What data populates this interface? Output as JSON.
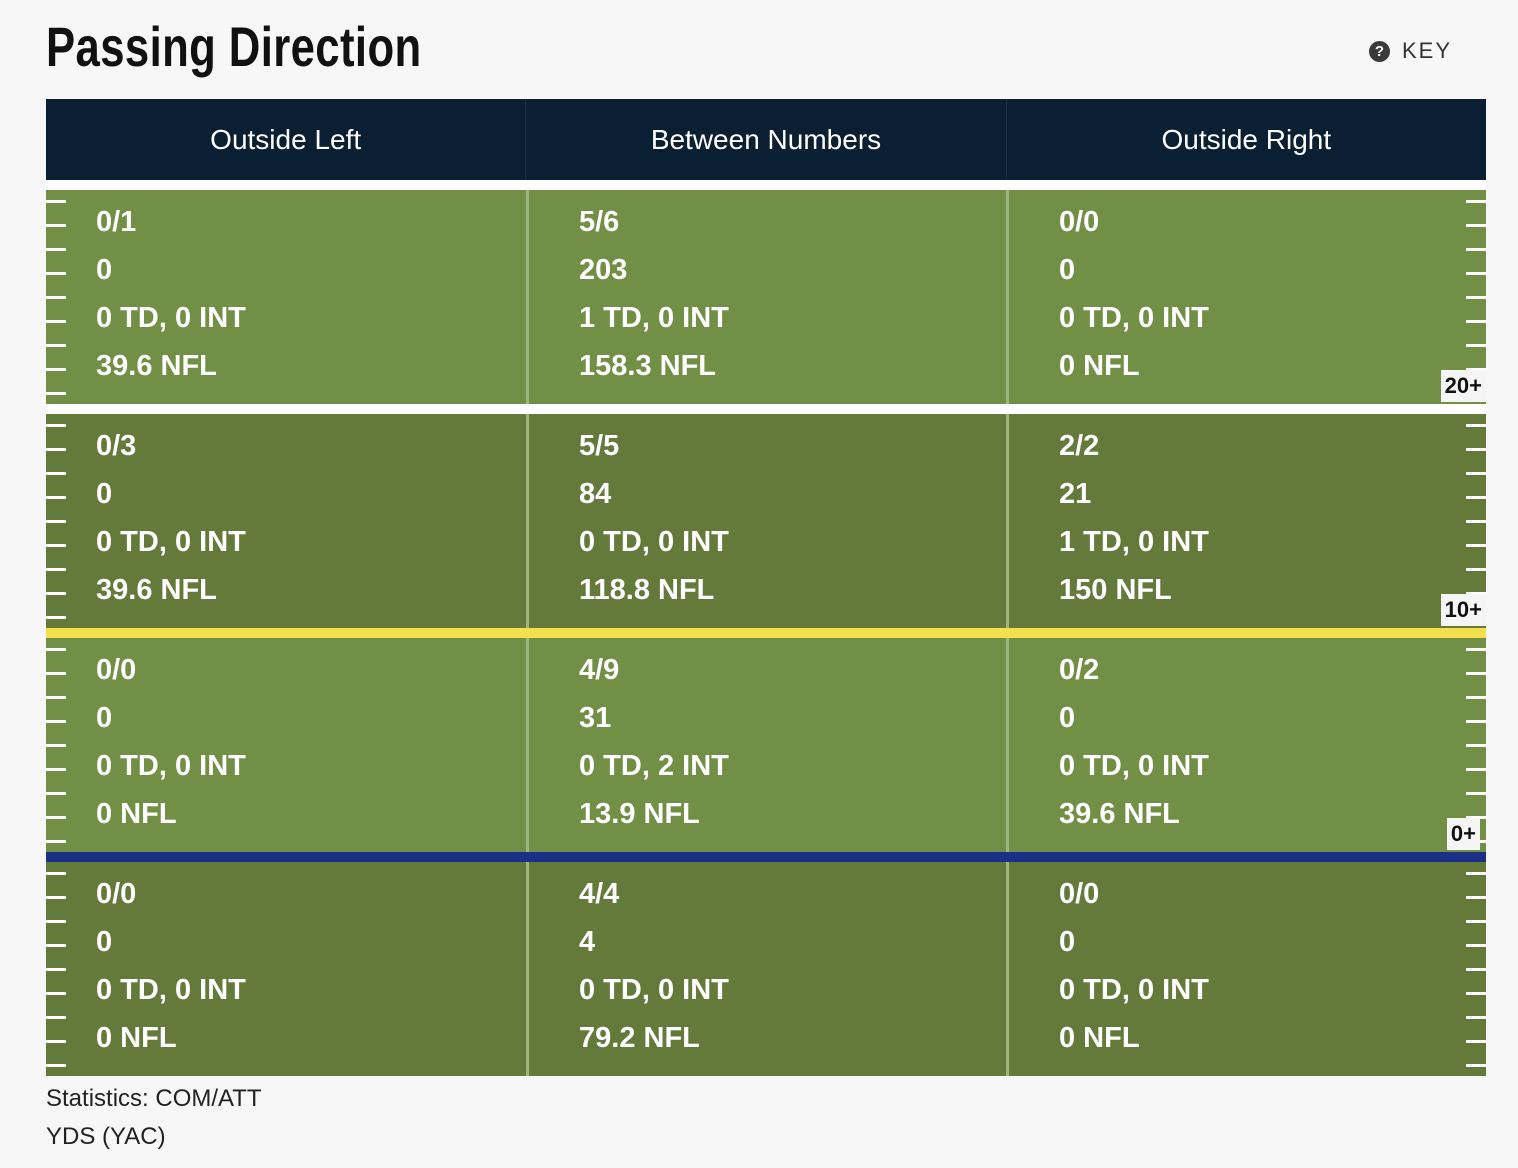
{
  "title": "Passing Direction",
  "key": {
    "icon": "help-circle-icon",
    "label": "KEY"
  },
  "columns": [
    "Outside Left",
    "Between Numbers",
    "Outside Right"
  ],
  "zones": [
    {
      "yard_label": "20+",
      "cells": [
        [
          "0/1",
          "0",
          "0 TD, 0 INT",
          "39.6 NFL"
        ],
        [
          "5/6",
          "203",
          "1 TD, 0 INT",
          "158.3 NFL"
        ],
        [
          "0/0",
          "0",
          "0 TD, 0 INT",
          "0 NFL"
        ]
      ]
    },
    {
      "yard_label": "10+",
      "cells": [
        [
          "0/3",
          "0",
          "0 TD, 0 INT",
          "39.6 NFL"
        ],
        [
          "5/5",
          "84",
          "0 TD, 0 INT",
          "118.8 NFL"
        ],
        [
          "2/2",
          "21",
          "1 TD, 0 INT",
          "150 NFL"
        ]
      ]
    },
    {
      "yard_label": "0+",
      "cells": [
        [
          "0/0",
          "0",
          "0 TD, 0 INT",
          "0 NFL"
        ],
        [
          "4/9",
          "31",
          "0 TD, 2 INT",
          "13.9 NFL"
        ],
        [
          "0/2",
          "0",
          "0 TD, 0 INT",
          "39.6 NFL"
        ]
      ]
    },
    {
      "yard_label": "",
      "cells": [
        [
          "0/0",
          "0",
          "0 TD, 0 INT",
          "0 NFL"
        ],
        [
          "4/4",
          "4",
          "0 TD, 0 INT",
          "79.2 NFL"
        ],
        [
          "0/0",
          "0",
          "0 TD, 0 INT",
          "0 NFL"
        ]
      ]
    }
  ],
  "legend": [
    "Statistics: COM/ATT",
    "YDS (YAC)"
  ],
  "colors": {
    "header_bg": "#0b1f33",
    "field_light": "#718f45",
    "field_dark": "#637a3b",
    "line_of_scrimmage": "#1b2f86",
    "first_down_line": "#f4e04d"
  }
}
